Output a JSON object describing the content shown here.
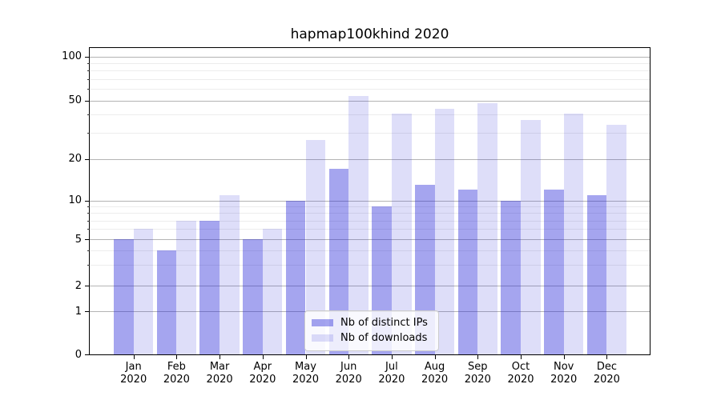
{
  "chart_data": {
    "type": "bar",
    "title": "hapmap100khind 2020",
    "categories": [
      "Jan",
      "Feb",
      "Mar",
      "Apr",
      "May",
      "Jun",
      "Jul",
      "Aug",
      "Sep",
      "Oct",
      "Nov",
      "Dec"
    ],
    "category_sublabel": "2020",
    "series": [
      {
        "name": "Nb of distinct IPs",
        "color": "rgba(31,31,214,0.40)",
        "values": [
          5,
          4,
          7,
          5,
          10,
          17,
          9,
          13,
          12,
          10,
          12,
          11
        ]
      },
      {
        "name": "Nb of downloads",
        "color": "rgba(31,31,214,0.15)",
        "values": [
          6,
          7,
          11,
          6,
          27,
          54,
          41,
          44,
          48,
          37,
          41,
          34
        ]
      }
    ],
    "y_axis": {
      "scale": "log-like",
      "ticks": [
        0,
        1,
        2,
        5,
        10,
        20,
        50,
        100
      ],
      "minor_ticks": [
        3,
        4,
        6,
        7,
        8,
        9,
        30,
        40,
        60,
        70,
        80,
        90
      ],
      "range_bottom": 0,
      "range_top": 100
    },
    "grid": true,
    "legend_position": "lower center",
    "colors": {
      "major_grid": "#b4b4b4",
      "minor_grid": "#ececec",
      "spine": "#000000"
    }
  }
}
